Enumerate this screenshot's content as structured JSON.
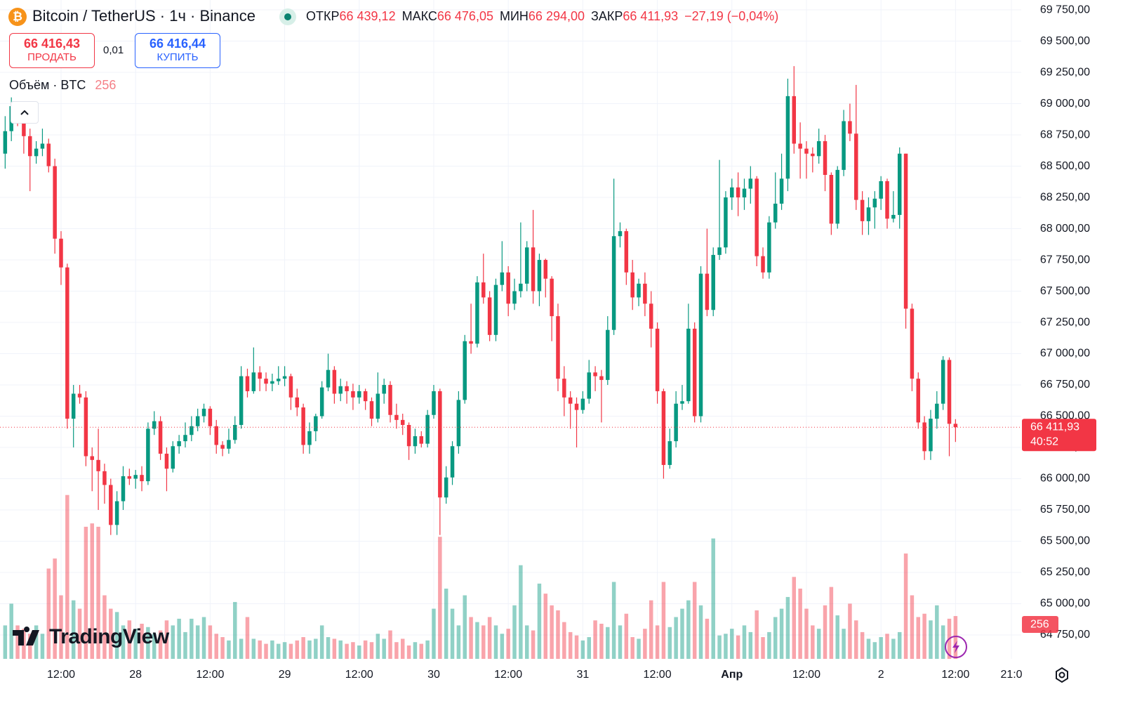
{
  "header": {
    "icon": "₿",
    "title": "Bitcoin / TetherUS · 1ч · Binance",
    "open_label": "ОТКР",
    "open": "66 439,12",
    "high_label": "МАКС",
    "high": "66 476,05",
    "low_label": "МИН",
    "low": "66 294,00",
    "close_label": "ЗАКР",
    "close": "66 411,93",
    "change": "−27,19 (−0,04%)"
  },
  "trade": {
    "sell_price": "66 416,43",
    "sell_label": "ПРОДАТЬ",
    "quantity": "0,01",
    "buy_price": "66 416,44",
    "buy_label": "КУПИТЬ"
  },
  "volume_label": "Объём · BTC",
  "logo": "TradingView",
  "chart_data": {
    "type": "candlestick",
    "up_color": "#089981",
    "down_color": "#f23645",
    "xlim": [
      -0.83,
      163.58
    ],
    "ylim": [
      64559,
      69829
    ],
    "volume_ylim": [
      0,
      3940
    ],
    "grid": true,
    "xticks": [
      {
        "value": 9,
        "label": "12:00"
      },
      {
        "value": 21,
        "label": "28"
      },
      {
        "value": 33,
        "label": "12:00"
      },
      {
        "value": 45,
        "label": "29"
      },
      {
        "value": 57,
        "label": "12:00"
      },
      {
        "value": 69,
        "label": "30"
      },
      {
        "value": 81,
        "label": "12:00"
      },
      {
        "value": 93,
        "label": "31"
      },
      {
        "value": 105,
        "label": "12:00"
      },
      {
        "value": 117,
        "label": "Апр"
      },
      {
        "value": 129,
        "label": "12:00"
      },
      {
        "value": 141,
        "label": "2"
      },
      {
        "value": 153,
        "label": "12:00"
      },
      {
        "value": 162,
        "label": "21:0"
      }
    ],
    "yticks": [
      {
        "value": 64750,
        "label": "64 750,00"
      },
      {
        "value": 65000,
        "label": "65 000,00"
      },
      {
        "value": 65250,
        "label": "65 250,00"
      },
      {
        "value": 65500,
        "label": "65 500,00"
      },
      {
        "value": 65750,
        "label": "65 750,00"
      },
      {
        "value": 66000,
        "label": "66 000,00"
      },
      {
        "value": 66250,
        "label": "66 250,00"
      },
      {
        "value": 66500,
        "label": "66 500,00"
      },
      {
        "value": 66750,
        "label": "66 750,00"
      },
      {
        "value": 67000,
        "label": "67 000,00"
      },
      {
        "value": 67250,
        "label": "67 250,00"
      },
      {
        "value": 67500,
        "label": "67 500,00"
      },
      {
        "value": 67750,
        "label": "67 750,00"
      },
      {
        "value": 68000,
        "label": "68 000,00"
      },
      {
        "value": 68250,
        "label": "68 250,00"
      },
      {
        "value": 68500,
        "label": "68 500,00"
      },
      {
        "value": 68750,
        "label": "68 750,00"
      },
      {
        "value": 69000,
        "label": "69 000,00"
      },
      {
        "value": 69250,
        "label": "69 250,00"
      },
      {
        "value": 69500,
        "label": "69 500,00"
      },
      {
        "value": 69750,
        "label": "69 750,00"
      }
    ],
    "last_price": {
      "value": 66411.93,
      "label": "66 411,93"
    },
    "countdown": "40:52",
    "ohlc": [
      [
        68600,
        68900,
        68480,
        68780
      ],
      [
        68780,
        69050,
        68700,
        68980
      ],
      [
        68980,
        69000,
        68820,
        68900
      ],
      [
        68900,
        68950,
        68600,
        68740
      ],
      [
        68740,
        68800,
        68300,
        68580
      ],
      [
        68580,
        68700,
        68520,
        68640
      ],
      [
        68640,
        68800,
        68580,
        68680
      ],
      [
        68680,
        68720,
        68450,
        68500
      ],
      [
        68500,
        68560,
        67800,
        67920
      ],
      [
        67920,
        67980,
        67550,
        67690
      ],
      [
        67690,
        67720,
        66400,
        66480
      ],
      [
        66480,
        66750,
        66250,
        66680
      ],
      [
        66680,
        66750,
        66600,
        66650
      ],
      [
        66650,
        66700,
        66100,
        66180
      ],
      [
        66180,
        66250,
        65900,
        66150
      ],
      [
        66150,
        66400,
        65750,
        66060
      ],
      [
        66060,
        66120,
        65800,
        65950
      ],
      [
        65950,
        66000,
        65550,
        65630
      ],
      [
        65630,
        65900,
        65550,
        65820
      ],
      [
        65820,
        66100,
        65750,
        66020
      ],
      [
        66020,
        66080,
        65950,
        66000
      ],
      [
        66000,
        66070,
        65920,
        66030
      ],
      [
        66030,
        66100,
        65900,
        65980
      ],
      [
        65980,
        66450,
        65950,
        66400
      ],
      [
        66400,
        66540,
        66350,
        66460
      ],
      [
        66460,
        66500,
        66150,
        66200
      ],
      [
        66200,
        66250,
        65900,
        66080
      ],
      [
        66080,
        66300,
        66050,
        66260
      ],
      [
        66260,
        66350,
        66200,
        66300
      ],
      [
        66300,
        66450,
        66250,
        66350
      ],
      [
        66350,
        66500,
        66300,
        66420
      ],
      [
        66420,
        66560,
        66380,
        66500
      ],
      [
        66500,
        66600,
        66450,
        66560
      ],
      [
        66560,
        66580,
        66350,
        66420
      ],
      [
        66420,
        66470,
        66200,
        66270
      ],
      [
        66270,
        66300,
        66180,
        66240
      ],
      [
        66240,
        66400,
        66200,
        66310
      ],
      [
        66310,
        66500,
        66280,
        66430
      ],
      [
        66430,
        66900,
        66400,
        66820
      ],
      [
        66820,
        66880,
        66650,
        66700
      ],
      [
        66700,
        67050,
        66680,
        66850
      ],
      [
        66850,
        66900,
        66700,
        66800
      ],
      [
        66800,
        66850,
        66700,
        66760
      ],
      [
        66760,
        66840,
        66700,
        66780
      ],
      [
        66780,
        66900,
        66750,
        66800
      ],
      [
        66800,
        66900,
        66740,
        66820
      ],
      [
        66820,
        66840,
        66550,
        66650
      ],
      [
        66650,
        66720,
        66500,
        66570
      ],
      [
        66570,
        66600,
        66200,
        66270
      ],
      [
        66270,
        66450,
        66200,
        66380
      ],
      [
        66380,
        66520,
        66300,
        66500
      ],
      [
        66500,
        66780,
        66480,
        66730
      ],
      [
        66730,
        67000,
        66700,
        66870
      ],
      [
        66870,
        66900,
        66600,
        66680
      ],
      [
        66680,
        66800,
        66620,
        66740
      ],
      [
        66740,
        66780,
        66600,
        66700
      ],
      [
        66700,
        66760,
        66550,
        66650
      ],
      [
        66650,
        66750,
        66600,
        66700
      ],
      [
        66700,
        66720,
        66550,
        66620
      ],
      [
        66620,
        66650,
        66420,
        66480
      ],
      [
        66480,
        66850,
        66450,
        66680
      ],
      [
        66680,
        66800,
        66600,
        66750
      ],
      [
        66750,
        66780,
        66450,
        66510
      ],
      [
        66510,
        66600,
        66400,
        66470
      ],
      [
        66470,
        66520,
        66350,
        66430
      ],
      [
        66430,
        66450,
        66150,
        66260
      ],
      [
        66260,
        66400,
        66200,
        66340
      ],
      [
        66340,
        66380,
        66250,
        66280
      ],
      [
        66280,
        66550,
        66250,
        66510
      ],
      [
        66510,
        66750,
        66480,
        66700
      ],
      [
        66700,
        66720,
        65550,
        65850
      ],
      [
        65850,
        66100,
        65800,
        66010
      ],
      [
        66010,
        66300,
        65950,
        66260
      ],
      [
        66260,
        66700,
        66200,
        66630
      ],
      [
        66630,
        67150,
        66600,
        67100
      ],
      [
        67100,
        67400,
        67000,
        67080
      ],
      [
        67080,
        67620,
        67050,
        67570
      ],
      [
        67570,
        67800,
        67400,
        67450
      ],
      [
        67450,
        67500,
        67100,
        67150
      ],
      [
        67150,
        67600,
        67100,
        67550
      ],
      [
        67550,
        67900,
        67500,
        67650
      ],
      [
        67650,
        67700,
        67300,
        67400
      ],
      [
        67400,
        67600,
        67350,
        67500
      ],
      [
        67500,
        68050,
        67450,
        67560
      ],
      [
        67560,
        67900,
        67500,
        67850
      ],
      [
        67850,
        68150,
        67400,
        67500
      ],
      [
        67500,
        67800,
        67380,
        67750
      ],
      [
        67750,
        67760,
        67450,
        67600
      ],
      [
        67600,
        67620,
        67100,
        67300
      ],
      [
        67300,
        67400,
        66700,
        66800
      ],
      [
        66800,
        66900,
        66500,
        66650
      ],
      [
        66650,
        66700,
        66400,
        66600
      ],
      [
        66600,
        66650,
        66250,
        66550
      ],
      [
        66550,
        66700,
        66520,
        66640
      ],
      [
        66640,
        66950,
        66600,
        66850
      ],
      [
        66850,
        66900,
        66700,
        66820
      ],
      [
        66820,
        66870,
        66450,
        66790
      ],
      [
        66790,
        67300,
        66750,
        67190
      ],
      [
        67190,
        68400,
        67150,
        67940
      ],
      [
        67940,
        68050,
        67850,
        67980
      ],
      [
        67980,
        68000,
        67550,
        67650
      ],
      [
        67650,
        67750,
        67350,
        67450
      ],
      [
        67450,
        67600,
        67380,
        67560
      ],
      [
        67560,
        67650,
        67300,
        67400
      ],
      [
        67400,
        67500,
        67050,
        67200
      ],
      [
        67200,
        67250,
        66600,
        66700
      ],
      [
        66700,
        66720,
        66000,
        66110
      ],
      [
        66110,
        66400,
        66080,
        66300
      ],
      [
        66300,
        66700,
        66250,
        66600
      ],
      [
        66600,
        66750,
        66550,
        66620
      ],
      [
        66620,
        67400,
        66600,
        67200
      ],
      [
        67200,
        67250,
        66450,
        66500
      ],
      [
        66500,
        67700,
        66450,
        67640
      ],
      [
        67640,
        68000,
        67300,
        67350
      ],
      [
        67350,
        67850,
        67300,
        67790
      ],
      [
        67790,
        68550,
        67750,
        67850
      ],
      [
        67850,
        68300,
        67800,
        68250
      ],
      [
        68250,
        68400,
        68150,
        68330
      ],
      [
        68330,
        68450,
        68100,
        68250
      ],
      [
        68250,
        68400,
        68150,
        68320
      ],
      [
        68320,
        68500,
        68200,
        68400
      ],
      [
        68400,
        68420,
        67700,
        67780
      ],
      [
        67780,
        67850,
        67600,
        67650
      ],
      [
        67650,
        68100,
        67600,
        68050
      ],
      [
        68050,
        68450,
        68000,
        68200
      ],
      [
        68200,
        68600,
        68150,
        68400
      ],
      [
        68400,
        69200,
        68300,
        69060
      ],
      [
        69060,
        69300,
        68600,
        68680
      ],
      [
        68680,
        68850,
        68400,
        68640
      ],
      [
        68640,
        68700,
        68400,
        68600
      ],
      [
        68600,
        68650,
        68450,
        68580
      ],
      [
        68580,
        68800,
        68520,
        68700
      ],
      [
        68700,
        68750,
        68300,
        68430
      ],
      [
        68430,
        68450,
        67950,
        68040
      ],
      [
        68040,
        68500,
        68000,
        68470
      ],
      [
        68470,
        68950,
        68420,
        68860
      ],
      [
        68860,
        69000,
        68700,
        68760
      ],
      [
        68760,
        69150,
        68150,
        68230
      ],
      [
        68230,
        68300,
        67950,
        68060
      ],
      [
        68060,
        68250,
        67950,
        68170
      ],
      [
        68170,
        68300,
        68000,
        68240
      ],
      [
        68240,
        68420,
        68150,
        68380
      ],
      [
        68380,
        68400,
        68000,
        68080
      ],
      [
        68080,
        68300,
        68050,
        68110
      ],
      [
        68110,
        68650,
        68000,
        68600
      ],
      [
        68600,
        68600,
        67200,
        67360
      ],
      [
        67360,
        67400,
        66700,
        66800
      ],
      [
        66800,
        66850,
        66400,
        66450
      ],
      [
        66450,
        66500,
        66150,
        66220
      ],
      [
        66220,
        66550,
        66150,
        66480
      ],
      [
        66480,
        66700,
        66400,
        66600
      ],
      [
        66600,
        66980,
        66550,
        66950
      ],
      [
        66950,
        66970,
        66180,
        66439.12
      ],
      [
        66439.12,
        66476.05,
        66294,
        66411.93
      ]
    ],
    "volume": [
      200,
      330,
      200,
      180,
      150,
      200,
      150,
      540,
      600,
      380,
      980,
      350,
      300,
      790,
      810,
      790,
      380,
      300,
      280,
      200,
      230,
      180,
      210,
      190,
      150,
      170,
      230,
      200,
      240,
      160,
      240,
      200,
      250,
      200,
      150,
      130,
      110,
      340,
      120,
      250,
      120,
      110,
      90,
      110,
      90,
      100,
      90,
      110,
      130,
      110,
      120,
      200,
      130,
      120,
      110,
      90,
      100,
      80,
      110,
      100,
      150,
      120,
      170,
      100,
      120,
      80,
      100,
      90,
      110,
      300,
      730,
      420,
      300,
      200,
      380,
      250,
      220,
      200,
      250,
      200,
      150,
      180,
      320,
      560,
      200,
      170,
      450,
      390,
      320,
      290,
      220,
      160,
      140,
      110,
      130,
      230,
      210,
      190,
      460,
      200,
      270,
      130,
      120,
      180,
      350,
      200,
      460,
      190,
      250,
      300,
      350,
      460,
      320,
      240,
      720,
      140,
      150,
      180,
      140,
      200,
      160,
      290,
      130,
      160,
      250,
      300,
      370,
      490,
      420,
      300,
      200,
      180,
      320,
      430,
      260,
      180,
      330,
      230,
      160,
      120,
      100,
      130,
      150,
      120,
      160,
      630,
      380,
      250,
      270,
      230,
      320,
      200,
      240,
      256
    ]
  }
}
